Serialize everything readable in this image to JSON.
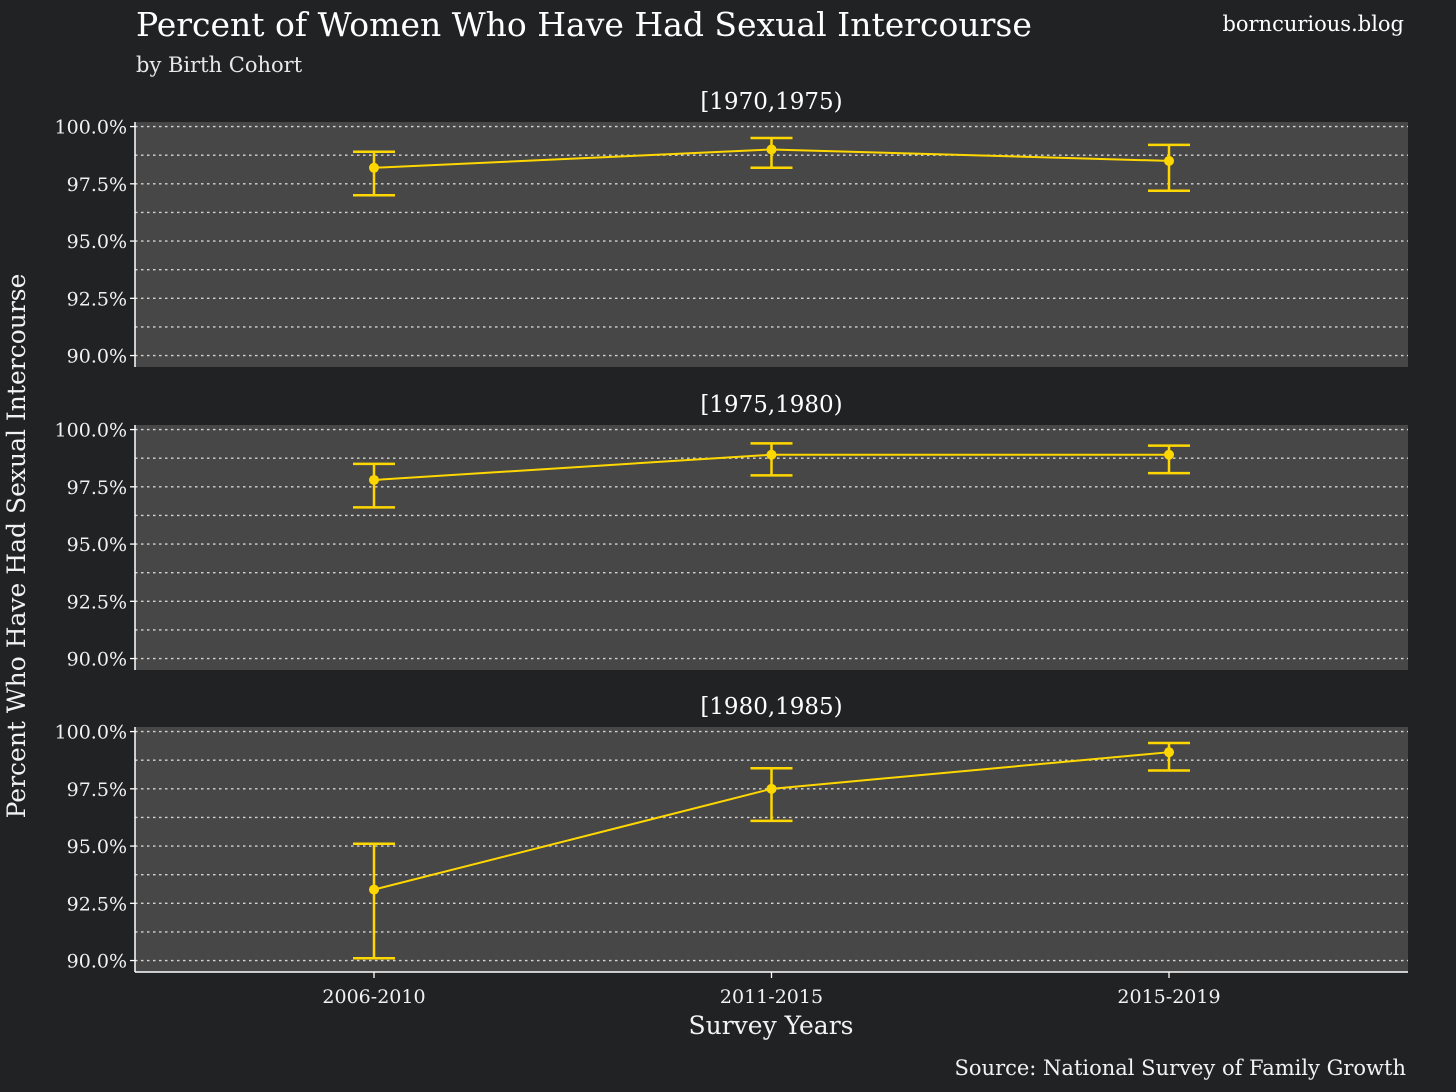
{
  "header": {
    "title": "Percent of Women Who Have Had Sexual Intercourse",
    "subtitle": "by Birth Cohort",
    "blog": "borncurious.blog"
  },
  "footer": {
    "source": "Source: National Survey of Family Growth"
  },
  "colors": {
    "background": "#212224",
    "panel": "#474747",
    "series": "#ffd700",
    "grid": "#e6e6e6"
  },
  "chart_data": {
    "type": "line",
    "error_bars": true,
    "xlabel": "Survey Years",
    "ylabel": "Percent Who Have Had Sexual Intercourse",
    "categories": [
      "2006-2010",
      "2011-2015",
      "2015-2019"
    ],
    "ylim": [
      89.5,
      100.2
    ],
    "yticks": [
      90.0,
      92.5,
      95.0,
      97.5,
      100.0
    ],
    "ytick_labels": [
      "90.0%",
      "92.5%",
      "95.0%",
      "97.5%",
      "100.0%"
    ],
    "grid": true,
    "facets": [
      {
        "label": "[1970,1975)",
        "values": [
          98.2,
          99.0,
          98.5
        ],
        "lower": [
          97.0,
          98.2,
          97.2
        ],
        "upper": [
          98.9,
          99.5,
          99.2
        ]
      },
      {
        "label": "[1975,1980)",
        "values": [
          97.8,
          98.9,
          98.9
        ],
        "lower": [
          96.6,
          98.0,
          98.1
        ],
        "upper": [
          98.5,
          99.4,
          99.3
        ]
      },
      {
        "label": "[1980,1985)",
        "values": [
          93.1,
          97.5,
          99.1
        ],
        "lower": [
          90.1,
          96.1,
          98.3
        ],
        "upper": [
          95.1,
          98.4,
          99.5
        ]
      }
    ]
  }
}
